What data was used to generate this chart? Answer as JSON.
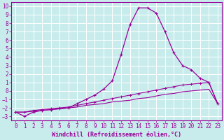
{
  "xlabel": "Windchill (Refroidissement éolien,°C)",
  "ylabel": "",
  "background_color": "#c8ecec",
  "grid_color": "#ffffff",
  "line_color": "#990099",
  "xlim": [
    -0.5,
    23.5
  ],
  "ylim": [
    -3.5,
    10.5
  ],
  "xticks": [
    0,
    1,
    2,
    3,
    4,
    5,
    6,
    7,
    8,
    9,
    10,
    11,
    12,
    13,
    14,
    15,
    16,
    17,
    18,
    19,
    20,
    21,
    22,
    23
  ],
  "yticks": [
    -3,
    -2,
    -1,
    0,
    1,
    2,
    3,
    4,
    5,
    6,
    7,
    8,
    9,
    10
  ],
  "line1_x": [
    0,
    1,
    2,
    3,
    4,
    5,
    6,
    7,
    8,
    9,
    10,
    11,
    12,
    13,
    14,
    15,
    16,
    17,
    18,
    19,
    20,
    21,
    22,
    23
  ],
  "line1_y": [
    -2.5,
    -3.0,
    -2.5,
    -2.3,
    -2.2,
    -2.1,
    -2.0,
    -1.5,
    -1.0,
    -0.5,
    0.2,
    1.2,
    4.3,
    7.8,
    9.8,
    9.8,
    9.2,
    7.0,
    4.5,
    3.0,
    2.5,
    1.5,
    1.0,
    -1.5
  ],
  "line2_x": [
    0,
    1,
    2,
    3,
    4,
    5,
    6,
    7,
    8,
    9,
    10,
    11,
    12,
    13,
    14,
    15,
    16,
    17,
    18,
    19,
    20,
    21,
    22,
    23
  ],
  "line2_y": [
    -2.5,
    -2.5,
    -2.4,
    -2.3,
    -2.2,
    -2.1,
    -2.0,
    -1.9,
    -1.7,
    -1.6,
    -1.5,
    -1.3,
    -1.2,
    -1.1,
    -0.9,
    -0.8,
    -0.6,
    -0.4,
    -0.3,
    -0.1,
    0.0,
    0.1,
    0.2,
    -1.5
  ],
  "line3_x": [
    0,
    1,
    2,
    3,
    4,
    5,
    6,
    7,
    8,
    9,
    10,
    11,
    12,
    13,
    14,
    15,
    16,
    17,
    18,
    19,
    20,
    21,
    22,
    23
  ],
  "line3_y": [
    -2.5,
    -2.5,
    -2.3,
    -2.2,
    -2.1,
    -2.0,
    -1.9,
    -1.7,
    -1.5,
    -1.3,
    -1.1,
    -0.9,
    -0.7,
    -0.5,
    -0.3,
    -0.1,
    0.1,
    0.3,
    0.5,
    0.7,
    0.8,
    0.9,
    1.0,
    -1.5
  ],
  "font_color": "#990099",
  "font_name": "monospace",
  "tick_fontsize": 5.5,
  "xlabel_fontsize": 6.0
}
